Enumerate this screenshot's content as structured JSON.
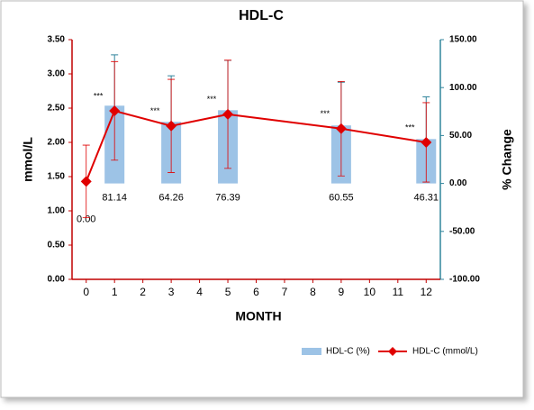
{
  "chart_data": {
    "type": "combo",
    "title": "HDL-C",
    "x_label": "MONTH",
    "y_label": "mmol/L",
    "y2_label": "% Change",
    "x": [
      0,
      1,
      3,
      5,
      9,
      12
    ],
    "xlim": [
      -0.5,
      12.5
    ],
    "xticks": [
      0,
      1,
      2,
      3,
      4,
      5,
      6,
      7,
      8,
      9,
      10,
      11,
      12
    ],
    "ylim": [
      0,
      3.5
    ],
    "yticks": [
      {
        "value": 0,
        "label": "0.00"
      },
      {
        "value": 0.5,
        "label": "0.50"
      },
      {
        "value": 1,
        "label": "1.00"
      },
      {
        "value": 1.5,
        "label": "1.50"
      },
      {
        "value": 2,
        "label": "2.00"
      },
      {
        "value": 2.5,
        "label": "2.50"
      },
      {
        "value": 3,
        "label": "3.00"
      },
      {
        "value": 3.5,
        "label": "3.50"
      }
    ],
    "y2lim": [
      -100,
      150
    ],
    "y2ticks": [
      {
        "value": -100,
        "label": "-100.00"
      },
      {
        "value": -50,
        "label": "-50.00"
      },
      {
        "value": 0,
        "label": "0.00"
      },
      {
        "value": 50,
        "label": "50.00"
      },
      {
        "value": 100,
        "label": "100.00"
      },
      {
        "value": 150,
        "label": "150.00"
      }
    ],
    "legend": "bottom-right",
    "series": [
      {
        "name": "HDL-C (%)",
        "kind": "bar",
        "axis": "y2",
        "color": "#9dc3e6",
        "error_color": "#31859c",
        "values": [
          0,
          81.14,
          64.26,
          76.39,
          60.55,
          46.31
        ],
        "value_labels": [
          "0.00",
          "81.14",
          "64.26",
          "76.39",
          "60.55",
          "46.31"
        ],
        "errors": [
          0,
          53,
          48,
          52,
          45,
          44
        ]
      },
      {
        "name": "HDL-C (mmol/L)",
        "kind": "line",
        "color": "#e00000",
        "values": [
          1.43,
          2.46,
          2.24,
          2.41,
          2.2,
          2.0
        ],
        "errors": [
          0.53,
          0.72,
          0.68,
          0.79,
          0.69,
          0.58
        ],
        "significance": [
          null,
          "***",
          "***",
          "***",
          "***",
          "***"
        ]
      }
    ]
  }
}
